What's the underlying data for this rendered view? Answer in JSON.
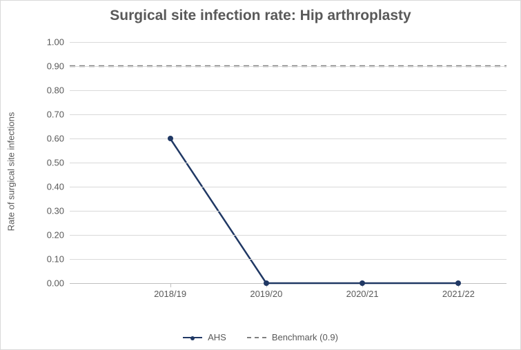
{
  "chart": {
    "type": "line",
    "title": "Surgical site infection rate: Hip arthroplasty",
    "title_fontsize": 21,
    "title_color": "#595959",
    "background_color": "#ffffff",
    "border_color": "#d9d9d9",
    "y_axis": {
      "label": "Rate of surgical site infections",
      "label_fontsize": 13,
      "min": 0.0,
      "max": 1.0,
      "tick_step": 0.1,
      "ticks": [
        "0.00",
        "0.10",
        "0.20",
        "0.30",
        "0.40",
        "0.50",
        "0.60",
        "0.70",
        "0.80",
        "0.90",
        "1.00"
      ],
      "tick_fontsize": 13,
      "grid_color": "#d9d9d9",
      "axis_color": "#bfbfbf",
      "label_color": "#595959"
    },
    "x_axis": {
      "categories": [
        "2018/19",
        "2019/20",
        "2020/21",
        "2021/22"
      ],
      "tick_fontsize": 13,
      "label_color": "#595959",
      "axis_color": "#bfbfbf"
    },
    "series": {
      "ahs": {
        "label": "AHS",
        "color": "#203864",
        "line_width": 2.5,
        "marker_style": "circle",
        "marker_size": 8,
        "values": [
          0.6,
          0.0,
          0.0,
          0.0
        ]
      },
      "benchmark": {
        "label": "Benchmark (0.9)",
        "color": "#7f7f7f",
        "line_width": 2.5,
        "dash": "8,6",
        "value": 0.9
      }
    },
    "legend": {
      "position": "bottom",
      "fontsize": 13
    }
  }
}
